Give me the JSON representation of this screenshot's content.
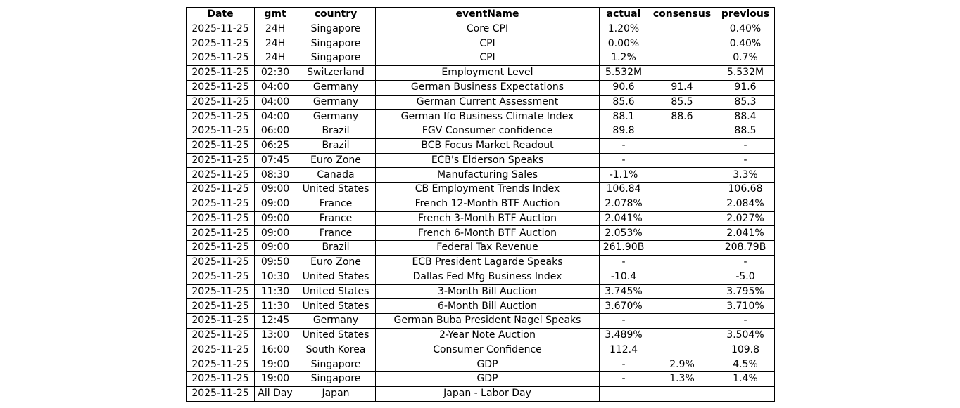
{
  "chart_data": {
    "type": "table",
    "columns": [
      "Date",
      "gmt",
      "country",
      "eventName",
      "actual",
      "consensus",
      "previous"
    ],
    "rows": [
      [
        "2025-11-25",
        "24H",
        "Singapore",
        "Core CPI",
        "1.20%",
        "",
        "0.40%"
      ],
      [
        "2025-11-25",
        "24H",
        "Singapore",
        "CPI",
        "0.00%",
        "",
        "0.40%"
      ],
      [
        "2025-11-25",
        "24H",
        "Singapore",
        "CPI",
        "1.2%",
        "",
        "0.7%"
      ],
      [
        "2025-11-25",
        "02:30",
        "Switzerland",
        "Employment Level",
        "5.532M",
        "",
        "5.532M"
      ],
      [
        "2025-11-25",
        "04:00",
        "Germany",
        "German Business Expectations",
        "90.6",
        "91.4",
        "91.6"
      ],
      [
        "2025-11-25",
        "04:00",
        "Germany",
        "German Current Assessment",
        "85.6",
        "85.5",
        "85.3"
      ],
      [
        "2025-11-25",
        "04:00",
        "Germany",
        "German Ifo Business Climate Index",
        "88.1",
        "88.6",
        "88.4"
      ],
      [
        "2025-11-25",
        "06:00",
        "Brazil",
        "FGV Consumer confidence",
        "89.8",
        "",
        "88.5"
      ],
      [
        "2025-11-25",
        "06:25",
        "Brazil",
        "BCB Focus Market Readout",
        "-",
        "",
        "-"
      ],
      [
        "2025-11-25",
        "07:45",
        "Euro Zone",
        "ECB's Elderson Speaks",
        "-",
        "",
        "-"
      ],
      [
        "2025-11-25",
        "08:30",
        "Canada",
        "Manufacturing Sales",
        "-1.1%",
        "",
        "3.3%"
      ],
      [
        "2025-11-25",
        "09:00",
        "United States",
        "CB Employment Trends Index",
        "106.84",
        "",
        "106.68"
      ],
      [
        "2025-11-25",
        "09:00",
        "France",
        "French 12-Month BTF Auction",
        "2.078%",
        "",
        "2.084%"
      ],
      [
        "2025-11-25",
        "09:00",
        "France",
        "French 3-Month BTF Auction",
        "2.041%",
        "",
        "2.027%"
      ],
      [
        "2025-11-25",
        "09:00",
        "France",
        "French 6-Month BTF Auction",
        "2.053%",
        "",
        "2.041%"
      ],
      [
        "2025-11-25",
        "09:00",
        "Brazil",
        "Federal Tax Revenue",
        "261.90B",
        "",
        "208.79B"
      ],
      [
        "2025-11-25",
        "09:50",
        "Euro Zone",
        "ECB President Lagarde Speaks",
        "-",
        "",
        "-"
      ],
      [
        "2025-11-25",
        "10:30",
        "United States",
        "Dallas Fed Mfg Business Index",
        "-10.4",
        "",
        "-5.0"
      ],
      [
        "2025-11-25",
        "11:30",
        "United States",
        "3-Month Bill Auction",
        "3.745%",
        "",
        "3.795%"
      ],
      [
        "2025-11-25",
        "11:30",
        "United States",
        "6-Month Bill Auction",
        "3.670%",
        "",
        "3.710%"
      ],
      [
        "2025-11-25",
        "12:45",
        "Germany",
        "German Buba President Nagel Speaks",
        "-",
        "",
        "-"
      ],
      [
        "2025-11-25",
        "13:00",
        "United States",
        "2-Year Note Auction",
        "3.489%",
        "",
        "3.504%"
      ],
      [
        "2025-11-25",
        "16:00",
        "South Korea",
        "Consumer Confidence",
        "112.4",
        "",
        "109.8"
      ],
      [
        "2025-11-25",
        "19:00",
        "Singapore",
        "GDP",
        "-",
        "2.9%",
        "4.5%"
      ],
      [
        "2025-11-25",
        "19:00",
        "Singapore",
        "GDP",
        "-",
        "1.3%",
        "1.4%"
      ],
      [
        "2025-11-25",
        "All Day",
        "Japan",
        "Japan - Labor Day",
        "",
        "",
        ""
      ]
    ]
  }
}
